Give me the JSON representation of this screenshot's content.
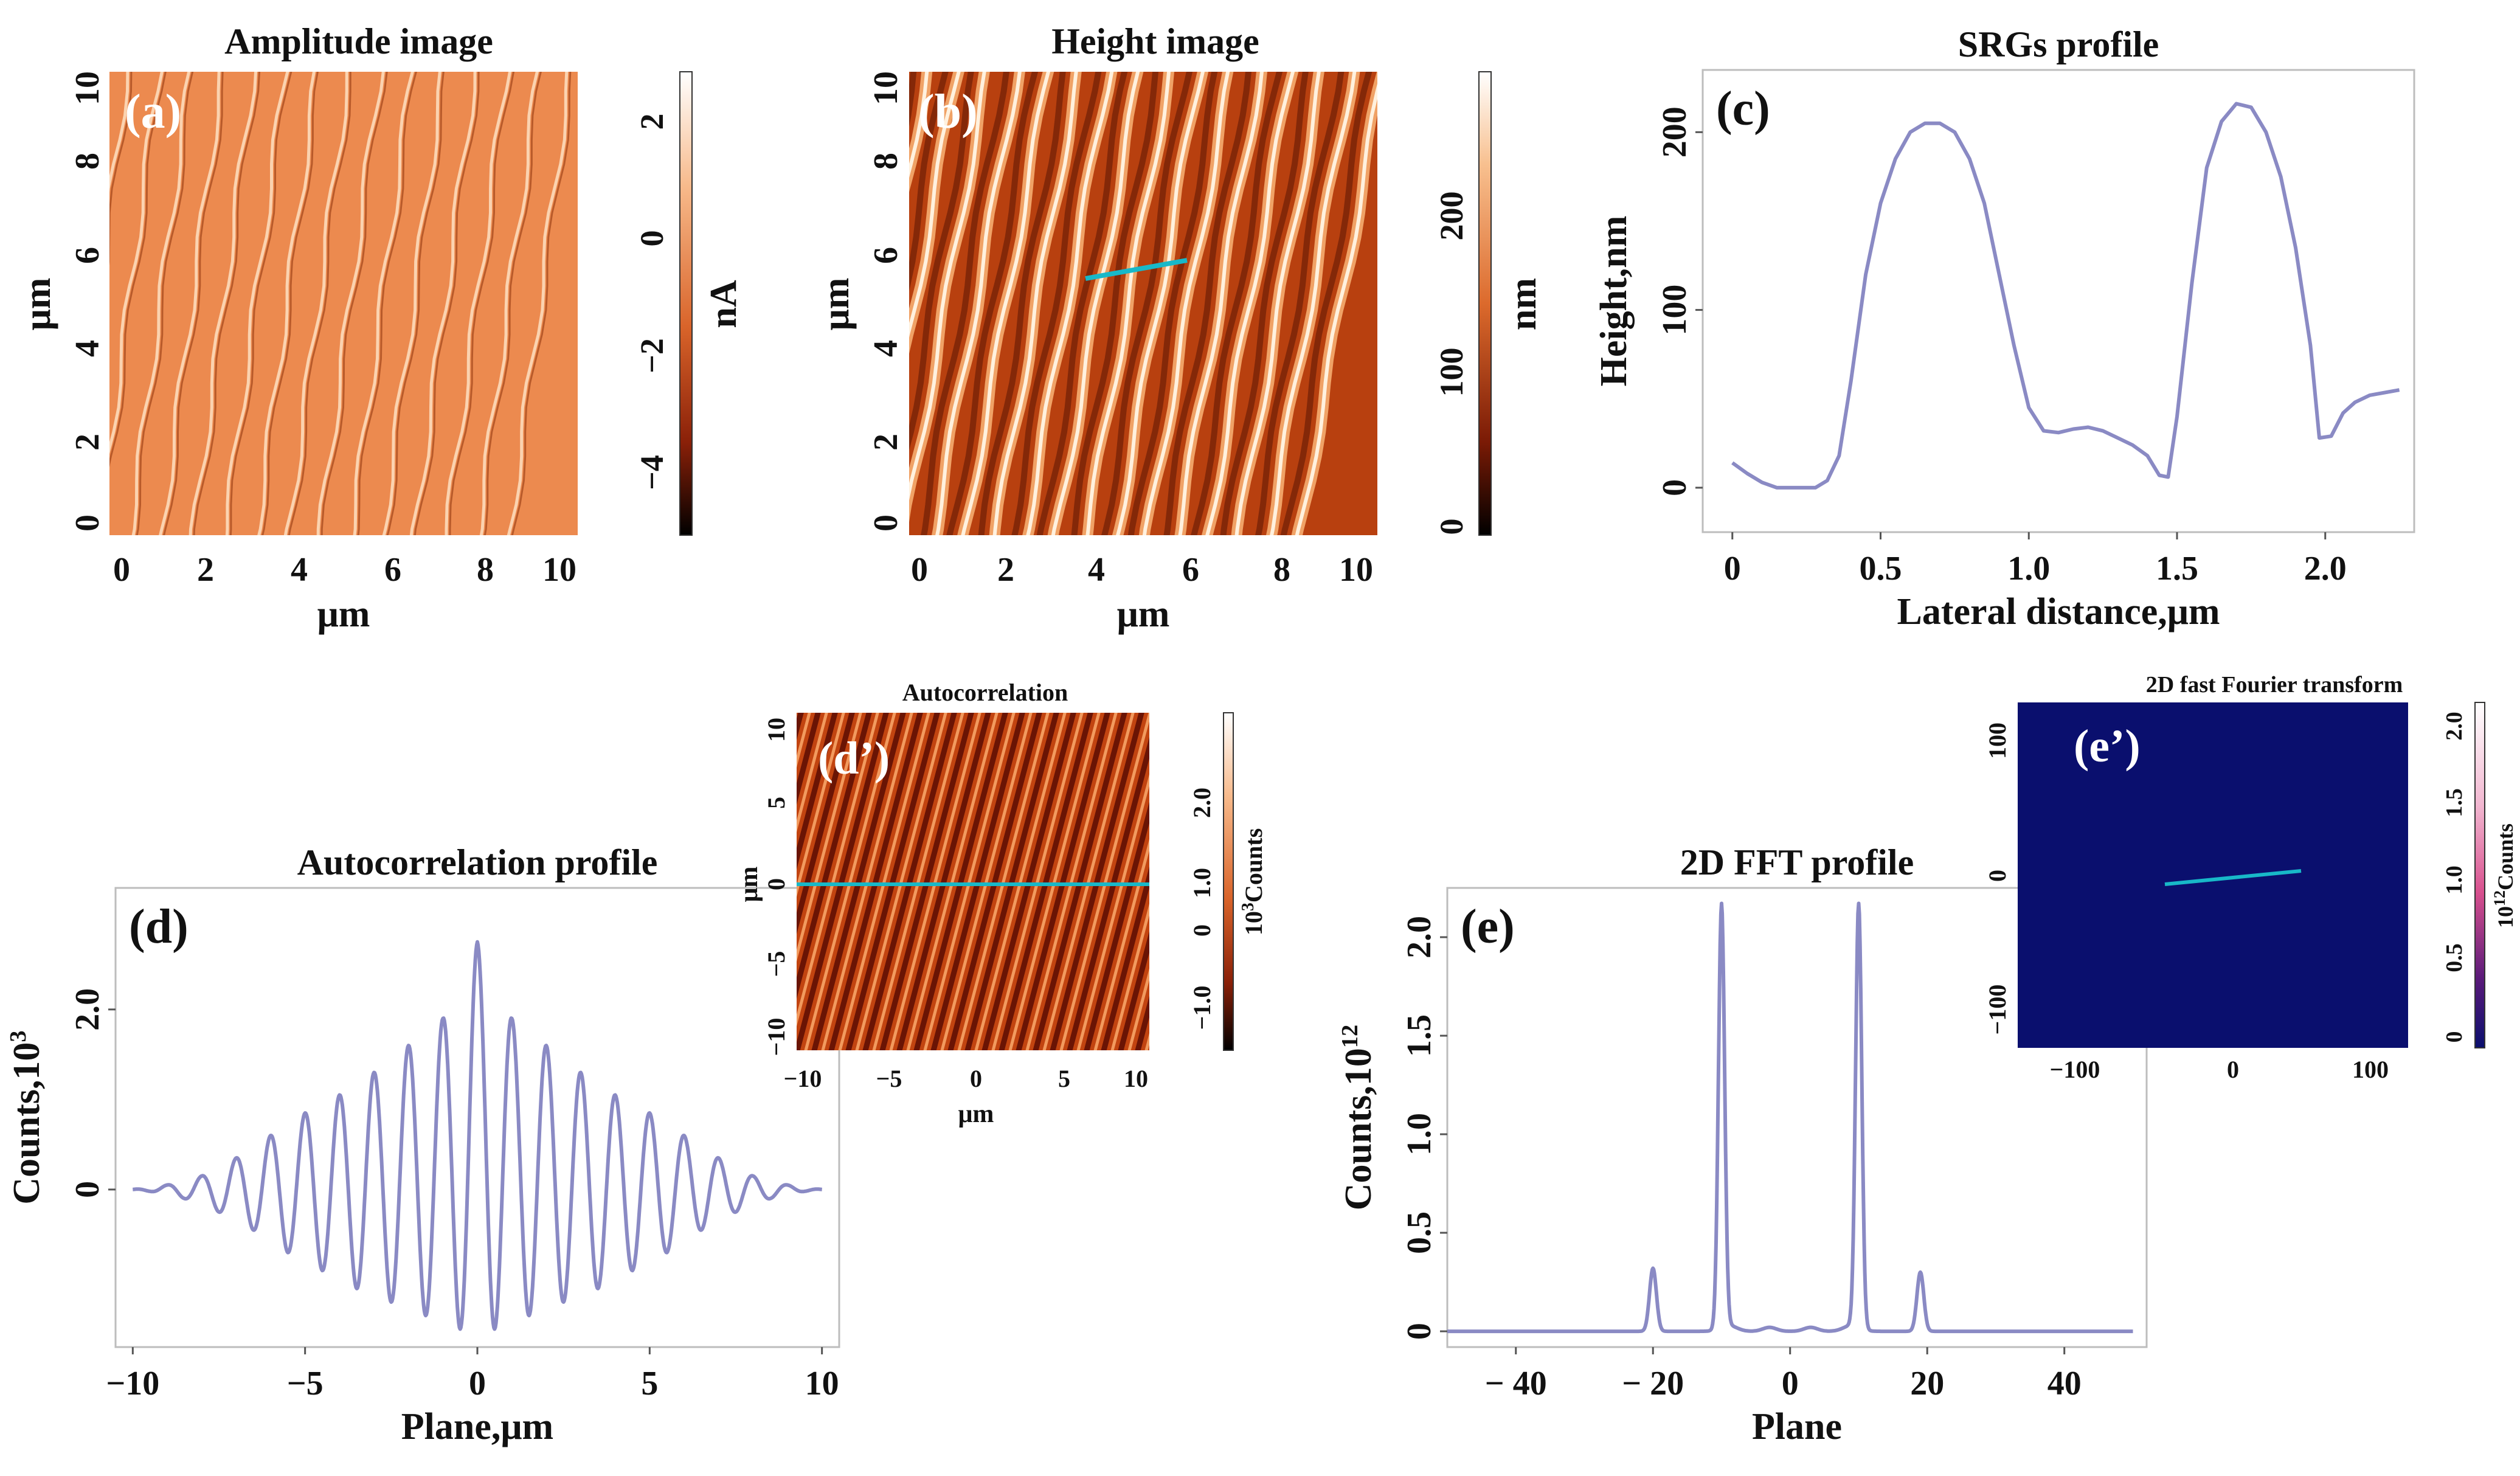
{
  "colors": {
    "line": "#8a8ac4",
    "frame": "#bdbdbd",
    "cyan": "#18b8c8",
    "fft_bg": "#0a0f6e"
  },
  "panels": {
    "a": {
      "title": "Amplitude image",
      "label": "(a)",
      "xlabel": "μm",
      "ylabel": "μm",
      "xticks": [
        "0",
        "2",
        "4",
        "6",
        "8",
        "10"
      ],
      "yticks": [
        "0",
        "2",
        "4",
        "6",
        "8",
        "10"
      ],
      "colorbar": {
        "unit": "nA",
        "ticks": [
          "2",
          "0",
          "−2",
          "−4"
        ],
        "range": [
          -5.2,
          2.8
        ]
      }
    },
    "b": {
      "title": "Height image",
      "label": "(b)",
      "xlabel": "μm",
      "ylabel": "μm",
      "xticks": [
        "0",
        "2",
        "4",
        "6",
        "8",
        "10"
      ],
      "yticks": [
        "0",
        "2",
        "4",
        "6",
        "8",
        "10"
      ],
      "colorbar": {
        "unit": "nm",
        "ticks": [
          "200",
          "100",
          "0"
        ],
        "range": [
          0,
          290
        ]
      }
    },
    "d_prime": {
      "title": "Autocorrelation",
      "label": "(d’)",
      "xlabel": "μm",
      "ylabel": "μm",
      "xticks": [
        "−10",
        "−5",
        "0",
        "5",
        "10"
      ],
      "yticks": [
        "10",
        "5",
        "0",
        "−5",
        "−10"
      ],
      "colorbar": {
        "unit_base": "10",
        "unit_exp": "3",
        "unit_text": "Counts",
        "ticks": [
          "2.0",
          "1.0",
          "0",
          "−1.0"
        ],
        "range": [
          -1.6,
          2.8
        ]
      }
    },
    "e_prime": {
      "title": "2D fast Fourier transform",
      "label": "(e’)",
      "xticks": [
        "−100",
        "0",
        "100"
      ],
      "yticks": [
        "100",
        "0",
        "−100"
      ],
      "colorbar": {
        "unit_base": "10",
        "unit_exp": "12",
        "unit_text": "Counts",
        "ticks": [
          "2.0",
          "1.5",
          "1.0",
          "0.5",
          "0"
        ],
        "range": [
          0,
          2.2
        ]
      }
    }
  },
  "chart_data": [
    {
      "id": "c",
      "type": "line",
      "title": "SRGs profile",
      "label": "(c)",
      "xlabel": "Lateral distance,μm",
      "ylabel": "Height,nm",
      "xlim": [
        -0.1,
        2.3
      ],
      "ylim": [
        -25,
        235
      ],
      "xticks": [
        0,
        0.5,
        1.0,
        1.5,
        2.0
      ],
      "xtick_labels": [
        "0",
        "0.5",
        "1.0",
        "1.5",
        "2.0"
      ],
      "yticks": [
        0,
        100,
        200
      ],
      "ytick_labels": [
        "0",
        "100",
        "200"
      ],
      "x": [
        0,
        0.05,
        0.1,
        0.15,
        0.2,
        0.25,
        0.28,
        0.32,
        0.36,
        0.4,
        0.45,
        0.5,
        0.55,
        0.6,
        0.65,
        0.7,
        0.75,
        0.8,
        0.85,
        0.9,
        0.95,
        1.0,
        1.05,
        1.1,
        1.15,
        1.2,
        1.25,
        1.3,
        1.35,
        1.4,
        1.44,
        1.47,
        1.5,
        1.55,
        1.6,
        1.65,
        1.7,
        1.75,
        1.8,
        1.85,
        1.9,
        1.95,
        1.98,
        2.02,
        2.06,
        2.1,
        2.15,
        2.25
      ],
      "y": [
        14,
        8,
        3,
        0,
        0,
        0,
        0,
        4,
        18,
        60,
        120,
        160,
        185,
        200,
        205,
        205,
        200,
        185,
        160,
        120,
        80,
        45,
        32,
        31,
        33,
        34,
        32,
        28,
        24,
        18,
        7,
        6,
        40,
        115,
        180,
        206,
        216,
        214,
        200,
        175,
        135,
        80,
        28,
        29,
        42,
        48,
        52,
        55
      ]
    },
    {
      "id": "d",
      "type": "line",
      "title": "Autocorrelation profile",
      "label": "(d)",
      "xlabel": "Plane,μm",
      "ylabel": "Counts,10",
      "ylabel_exp": "3",
      "xlim": [
        -10.5,
        10.5
      ],
      "ylim": [
        -1.75,
        3.35
      ],
      "xticks": [
        -10,
        -5,
        0,
        5,
        10
      ],
      "xtick_labels": [
        "−10",
        "−5",
        "0",
        "5",
        "10"
      ],
      "yticks": [
        0,
        2.0
      ],
      "ytick_labels": [
        "0",
        "2.0"
      ],
      "x_range": [
        -10,
        10
      ],
      "period": 1.0,
      "peak_envelope": [
        [
          -10,
          0
        ],
        [
          -9,
          0.05
        ],
        [
          -8,
          0.15
        ],
        [
          -7,
          0.35
        ],
        [
          -6,
          0.6
        ],
        [
          -5,
          0.85
        ],
        [
          -4,
          1.05
        ],
        [
          -3,
          1.3
        ],
        [
          -2,
          1.6
        ],
        [
          -1,
          1.9
        ],
        [
          0,
          2.75
        ],
        [
          1,
          1.9
        ],
        [
          2,
          1.6
        ],
        [
          3,
          1.3
        ],
        [
          4,
          1.05
        ],
        [
          5,
          0.85
        ],
        [
          6,
          0.6
        ],
        [
          7,
          0.35
        ],
        [
          8,
          0.15
        ],
        [
          9,
          0.05
        ],
        [
          10,
          0
        ]
      ],
      "trough_envelope": [
        [
          -10,
          0
        ],
        [
          -9.5,
          -0.02
        ],
        [
          -8.5,
          -0.1
        ],
        [
          -7.5,
          -0.25
        ],
        [
          -6.5,
          -0.45
        ],
        [
          -5.5,
          -0.7
        ],
        [
          -4.5,
          -0.9
        ],
        [
          -3.5,
          -1.1
        ],
        [
          -2.5,
          -1.25
        ],
        [
          -1.5,
          -1.4
        ],
        [
          -0.5,
          -1.55
        ],
        [
          0.5,
          -1.55
        ],
        [
          1.5,
          -1.4
        ],
        [
          2.5,
          -1.25
        ],
        [
          3.5,
          -1.1
        ],
        [
          4.5,
          -0.9
        ],
        [
          5.5,
          -0.7
        ],
        [
          6.5,
          -0.45
        ],
        [
          7.5,
          -0.25
        ],
        [
          8.5,
          -0.1
        ],
        [
          9.5,
          -0.02
        ],
        [
          10,
          0
        ]
      ]
    },
    {
      "id": "e",
      "type": "line",
      "title": "2D FFT profile",
      "label": "(e)",
      "xlabel": "Plane",
      "ylabel": "Counts,10",
      "ylabel_exp": "12",
      "xlim": [
        -50,
        52
      ],
      "ylim": [
        -0.08,
        2.25
      ],
      "xticks": [
        -40,
        -20,
        0,
        20,
        40
      ],
      "xtick_labels": [
        "− 40",
        "− 20",
        "0",
        "20",
        "40"
      ],
      "yticks": [
        0,
        0.5,
        1.0,
        1.5,
        2.0
      ],
      "ytick_labels": [
        "0",
        "0.5",
        "1.0",
        "1.5",
        "2.0"
      ],
      "x_range": [
        -50,
        50
      ],
      "baseline": 0.0,
      "peaks": [
        {
          "x": -20,
          "height": 0.32,
          "width": 0.5
        },
        {
          "x": -10,
          "height": 2.15,
          "width": 0.45
        },
        {
          "x": 10,
          "height": 2.15,
          "width": 0.45
        },
        {
          "x": 19,
          "height": 0.3,
          "width": 0.5
        },
        {
          "x": -9,
          "height": 0.03,
          "width": 1.2
        },
        {
          "x": 9,
          "height": 0.03,
          "width": 1.2
        },
        {
          "x": -3,
          "height": 0.02,
          "width": 1.0
        },
        {
          "x": 3,
          "height": 0.02,
          "width": 1.0
        }
      ]
    }
  ]
}
